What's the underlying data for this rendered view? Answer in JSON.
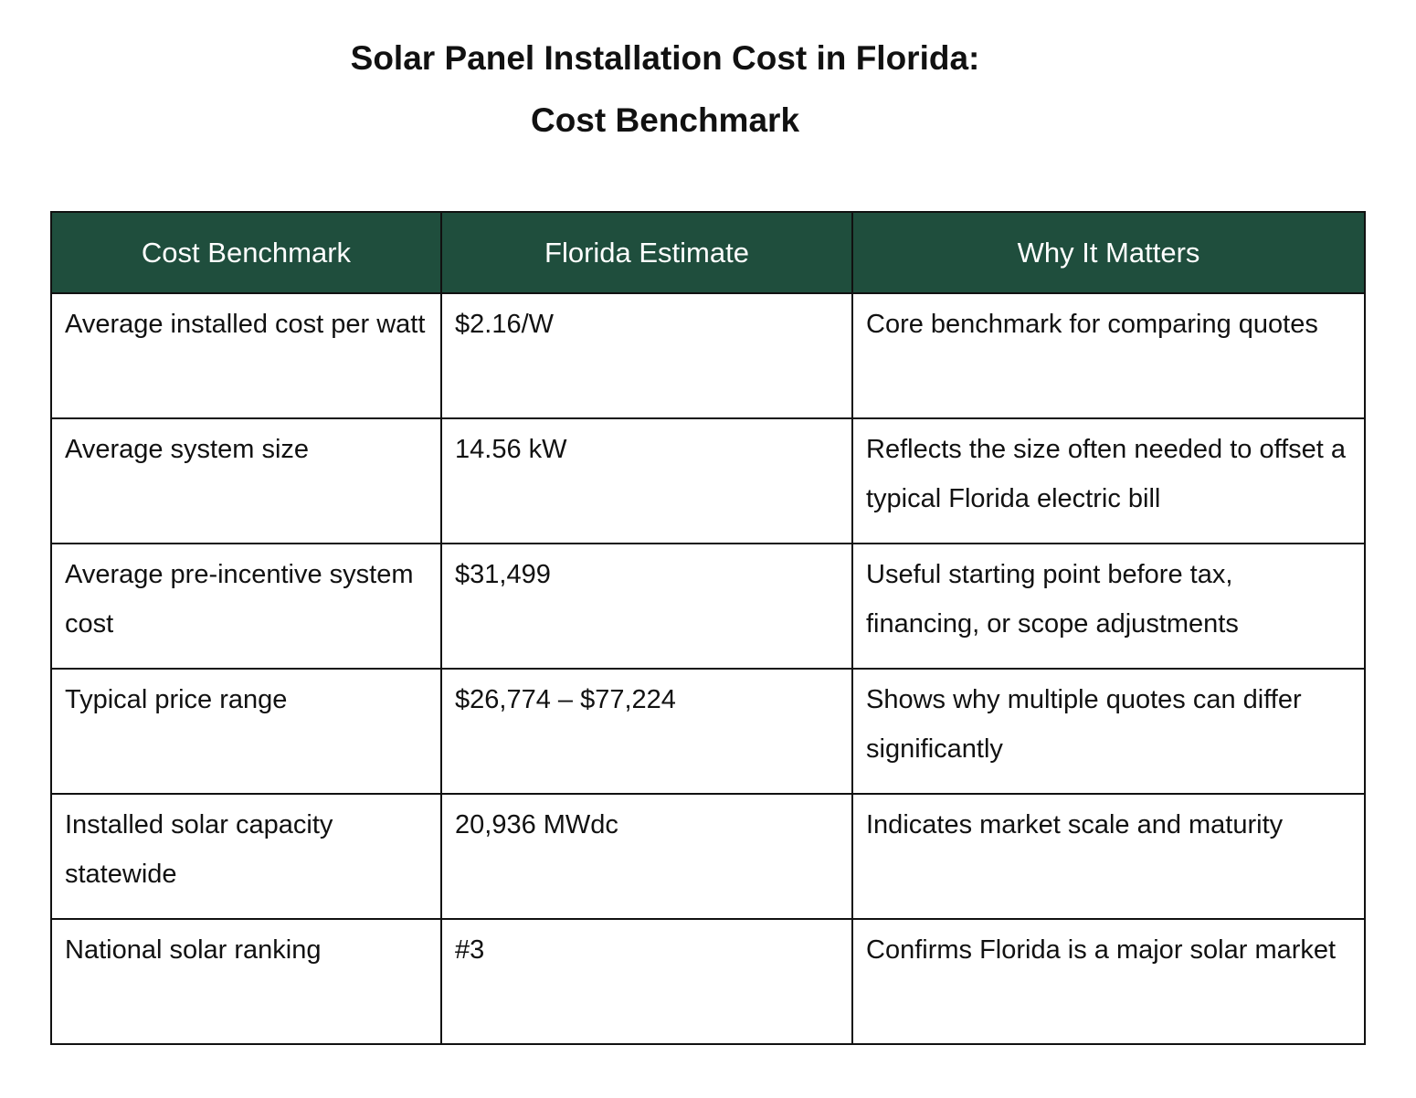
{
  "title": {
    "line1": "Solar Panel Installation Cost in Florida:",
    "line2": "Cost Benchmark"
  },
  "table": {
    "headers": [
      "Cost Benchmark",
      "Florida Estimate",
      "Why It Matters"
    ],
    "header_bg": "#1f4e3d",
    "rows": [
      [
        "Average installed cost per watt",
        "$2.16/W",
        "Core benchmark for comparing quotes"
      ],
      [
        "Average system size",
        "14.56 kW",
        "Reflects the size often needed to offset a typical Florida electric bill"
      ],
      [
        "Average pre-incentive system cost",
        "$31,499",
        "Useful starting point before tax, financing, or scope adjustments"
      ],
      [
        "Typical price range",
        "$26,774 – $77,224",
        "Shows why multiple quotes can differ significantly"
      ],
      [
        "Installed solar capacity statewide",
        "20,936 MWdc",
        "Indicates market scale and maturity"
      ],
      [
        "National solar ranking",
        "#3",
        "Confirms Florida is a major solar market"
      ]
    ]
  }
}
